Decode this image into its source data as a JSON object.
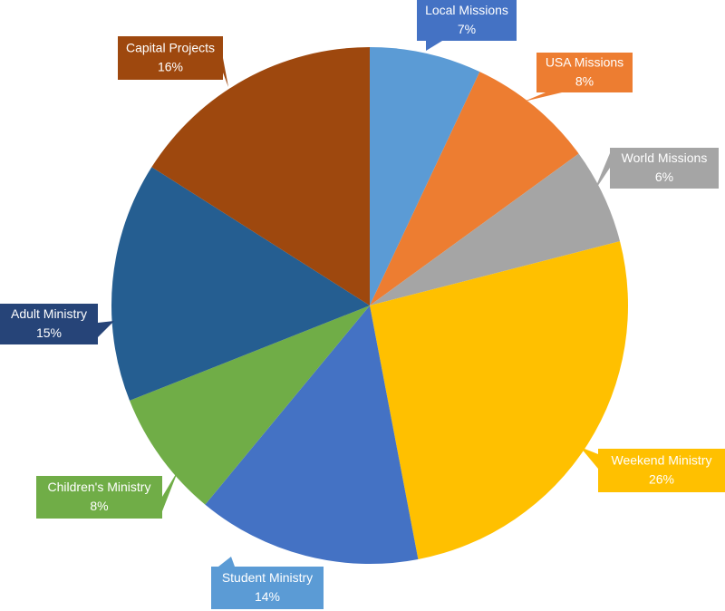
{
  "chart_data": {
    "type": "pie",
    "categories": [
      "Local Missions",
      "USA Missions",
      "World Missions",
      "Weekend Ministry",
      "Student Ministry",
      "Children's Ministry",
      "Adult Ministry",
      "Capital Projects"
    ],
    "values": [
      7,
      8,
      6,
      26,
      14,
      8,
      15,
      16
    ],
    "value_labels": [
      "7%",
      "8%",
      "6%",
      "26%",
      "14%",
      "8%",
      "15%",
      "16%"
    ],
    "colors": [
      "#5b9bd5",
      "#ed7d31",
      "#a5a5a5",
      "#ffc000",
      "#4472c4",
      "#70ad47",
      "#255e91",
      "#9e480e"
    ],
    "label_colors": [
      "#4472c4",
      "#ed7d31",
      "#a5a5a5",
      "#ffc000",
      "#5b9bd5",
      "#70ad47",
      "#264478",
      "#9e480e"
    ]
  }
}
